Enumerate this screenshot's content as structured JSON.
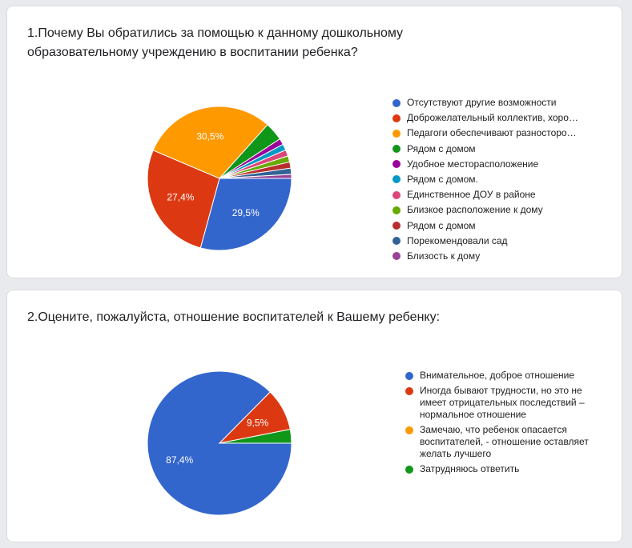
{
  "chart_data": [
    {
      "type": "pie",
      "title": "1.Почему Вы обратились за помощью к данному дошкольному образовательному учреждению в воспитании ребенка?",
      "legend_position": "right",
      "slices": [
        {
          "label": "Отсутствуют другие возможности",
          "value": 29.5,
          "value_label": "29,5%",
          "color": "#3366cc"
        },
        {
          "label": "Доброжелательный коллектив, хоро…",
          "value": 27.4,
          "value_label": "27,4%",
          "color": "#dc3912"
        },
        {
          "label": "Педагоги обеспечивают разносторо…",
          "value": 30.5,
          "value_label": "30,5%",
          "color": "#ff9900"
        },
        {
          "label": "Рядом с домом",
          "value": 4.2,
          "value_label": "",
          "color": "#109618"
        },
        {
          "label": "Удобное месторасположение",
          "value": 1.4,
          "value_label": "",
          "color": "#990099"
        },
        {
          "label": "Рядом с домом.",
          "value": 1.4,
          "value_label": "",
          "color": "#0099c6"
        },
        {
          "label": "Единственное ДОУ в районе",
          "value": 1.4,
          "value_label": "",
          "color": "#dd4477"
        },
        {
          "label": "Близкое расположение к дому",
          "value": 1.4,
          "value_label": "",
          "color": "#66aa00"
        },
        {
          "label": "Рядом с домом",
          "value": 1.4,
          "value_label": "",
          "color": "#b82e2e"
        },
        {
          "label": "Порекомендовали сад",
          "value": 1.4,
          "value_label": "",
          "color": "#316395"
        },
        {
          "label": "Близость к дому",
          "value": 0.9,
          "value_label": "",
          "color": "#994499"
        }
      ]
    },
    {
      "type": "pie",
      "title": "2.Оцените, пожалуйста, отношение воспитателей к Вашему ребенку:",
      "legend_position": "right",
      "slices": [
        {
          "label": "Внимательное, доброе отношение",
          "value": 87.4,
          "value_label": "87,4%",
          "color": "#3366cc"
        },
        {
          "label": "Иногда бывают трудности, но это не имеет отрицательных последствий – нормальное отношение",
          "value": 9.5,
          "value_label": "9,5%",
          "color": "#dc3912"
        },
        {
          "label": "Замечаю, что ребенок опасается воспитателей, - отношение оставляет желать лучшего",
          "value": 0,
          "value_label": "",
          "color": "#ff9900"
        },
        {
          "label": "Затрудняюсь ответить",
          "value": 3.1,
          "value_label": "",
          "color": "#109618"
        }
      ]
    }
  ]
}
